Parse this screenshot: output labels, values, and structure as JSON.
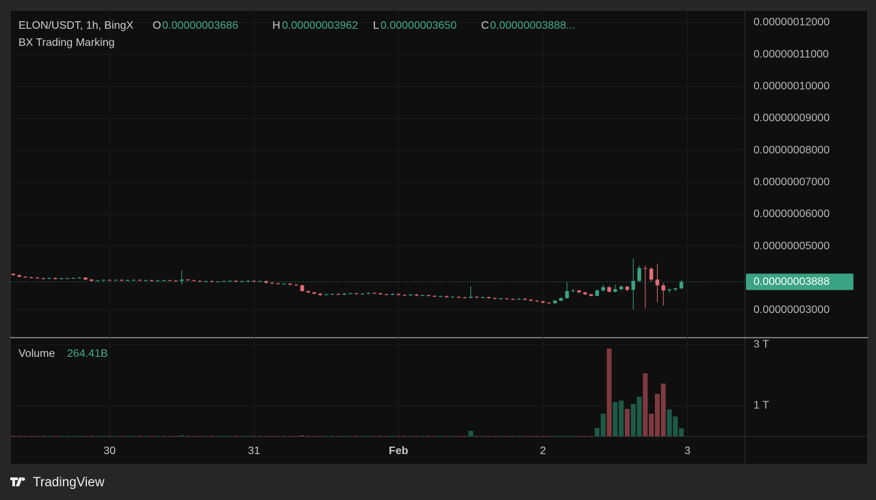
{
  "chart_data": {
    "type": "candlestick",
    "symbol": "ELON/USDT, 1h, BingX",
    "indicator": "BX Trading Marking",
    "ohlc_legend": [
      {
        "key": "O",
        "value_label": "0.00000003686"
      },
      {
        "key": "H",
        "value_label": "0.00000003962"
      },
      {
        "key": "L",
        "value_label": "0.00000003650"
      },
      {
        "key": "C",
        "value_label": "0.00000003888..."
      }
    ],
    "last_price_label": "0.00000003888",
    "candles": [
      [
        4.14e-08,
        4.16e-08,
        4.08e-08,
        4.1e-08
      ],
      [
        4.1e-08,
        4.12e-08,
        4.03e-08,
        4.05e-08
      ],
      [
        4.05e-08,
        4.07e-08,
        4.01e-08,
        4.03e-08
      ],
      [
        4.03e-08,
        4.05e-08,
        4e-08,
        4.02e-08
      ],
      [
        4.02e-08,
        4.04e-08,
        3.98e-08,
        4e-08
      ],
      [
        4e-08,
        4.02e-08,
        3.97e-08,
        3.99e-08
      ],
      [
        3.99e-08,
        4.03e-08,
        3.97e-08,
        4.01e-08
      ],
      [
        4.01e-08,
        4.03e-08,
        3.96e-08,
        3.98e-08
      ],
      [
        3.98e-08,
        4.02e-08,
        3.96e-08,
        4e-08
      ],
      [
        4e-08,
        4.02e-08,
        3.98e-08,
        4e-08
      ],
      [
        4e-08,
        4.03e-08,
        3.98e-08,
        4.01e-08
      ],
      [
        4.01e-08,
        4.04e-08,
        3.99e-08,
        4.02e-08
      ],
      [
        4.02e-08,
        4.04e-08,
        3.94e-08,
        3.96e-08
      ],
      [
        3.96e-08,
        3.98e-08,
        3.9e-08,
        3.92e-08
      ],
      [
        3.92e-08,
        3.95e-08,
        3.9e-08,
        3.93e-08
      ],
      [
        3.93e-08,
        3.97e-08,
        3.91e-08,
        3.95e-08
      ],
      [
        3.95e-08,
        3.97e-08,
        3.92e-08,
        3.94e-08
      ],
      [
        3.94e-08,
        3.97e-08,
        3.92e-08,
        3.95e-08
      ],
      [
        3.95e-08,
        3.97e-08,
        3.91e-08,
        3.93e-08
      ],
      [
        3.93e-08,
        3.96e-08,
        3.91e-08,
        3.94e-08
      ],
      [
        3.94e-08,
        3.97e-08,
        3.92e-08,
        3.95e-08
      ],
      [
        3.95e-08,
        3.97e-08,
        3.91e-08,
        3.93e-08
      ],
      [
        3.93e-08,
        3.96e-08,
        3.91e-08,
        3.94e-08
      ],
      [
        3.94e-08,
        3.96e-08,
        3.9e-08,
        3.92e-08
      ],
      [
        3.92e-08,
        3.95e-08,
        3.9e-08,
        3.93e-08
      ],
      [
        3.93e-08,
        3.96e-08,
        3.91e-08,
        3.94e-08
      ],
      [
        3.94e-08,
        3.96e-08,
        3.91e-08,
        3.93e-08
      ],
      [
        3.93e-08,
        3.95e-08,
        3.9e-08,
        3.92e-08
      ],
      [
        3.92e-08,
        4.25e-08,
        3.8e-08,
        3.96e-08
      ],
      [
        3.96e-08,
        3.98e-08,
        3.92e-08,
        3.94e-08
      ],
      [
        3.94e-08,
        3.96e-08,
        3.9e-08,
        3.92e-08
      ],
      [
        3.92e-08,
        3.94e-08,
        3.88e-08,
        3.9e-08
      ],
      [
        3.9e-08,
        3.93e-08,
        3.88e-08,
        3.91e-08
      ],
      [
        3.91e-08,
        3.93e-08,
        3.87e-08,
        3.89e-08
      ],
      [
        3.89e-08,
        3.92e-08,
        3.87e-08,
        3.9e-08
      ],
      [
        3.9e-08,
        3.93e-08,
        3.88e-08,
        3.91e-08
      ],
      [
        3.91e-08,
        3.94e-08,
        3.89e-08,
        3.92e-08
      ],
      [
        3.92e-08,
        3.94e-08,
        3.88e-08,
        3.9e-08
      ],
      [
        3.9e-08,
        3.93e-08,
        3.88e-08,
        3.91e-08
      ],
      [
        3.91e-08,
        3.94e-08,
        3.89e-08,
        3.92e-08
      ],
      [
        3.92e-08,
        3.94e-08,
        3.88e-08,
        3.9e-08
      ],
      [
        3.9e-08,
        3.93e-08,
        3.88e-08,
        3.91e-08
      ],
      [
        3.91e-08,
        3.93e-08,
        3.84e-08,
        3.86e-08
      ],
      [
        3.86e-08,
        3.88e-08,
        3.82e-08,
        3.84e-08
      ],
      [
        3.84e-08,
        3.86e-08,
        3.8e-08,
        3.82e-08
      ],
      [
        3.82e-08,
        3.85e-08,
        3.8e-08,
        3.83e-08
      ],
      [
        3.83e-08,
        3.85e-08,
        3.78e-08,
        3.8e-08
      ],
      [
        3.8e-08,
        3.82e-08,
        3.76e-08,
        3.78e-08
      ],
      [
        3.78e-08,
        3.8e-08,
        3.58e-08,
        3.6e-08
      ],
      [
        3.6e-08,
        3.62e-08,
        3.54e-08,
        3.56e-08
      ],
      [
        3.56e-08,
        3.58e-08,
        3.5e-08,
        3.52e-08
      ],
      [
        3.52e-08,
        3.54e-08,
        3.44e-08,
        3.48e-08
      ],
      [
        3.48e-08,
        3.52e-08,
        3.46e-08,
        3.5e-08
      ],
      [
        3.5e-08,
        3.53e-08,
        3.48e-08,
        3.51e-08
      ],
      [
        3.51e-08,
        3.53e-08,
        3.47e-08,
        3.49e-08
      ],
      [
        3.49e-08,
        3.54e-08,
        3.47e-08,
        3.52e-08
      ],
      [
        3.52e-08,
        3.55e-08,
        3.5e-08,
        3.53e-08
      ],
      [
        3.53e-08,
        3.55e-08,
        3.49e-08,
        3.51e-08
      ],
      [
        3.51e-08,
        3.54e-08,
        3.49e-08,
        3.52e-08
      ],
      [
        3.52e-08,
        3.56e-08,
        3.5e-08,
        3.54e-08
      ],
      [
        3.54e-08,
        3.56e-08,
        3.51e-08,
        3.53e-08
      ],
      [
        3.53e-08,
        3.55e-08,
        3.48e-08,
        3.5e-08
      ],
      [
        3.5e-08,
        3.52e-08,
        3.47e-08,
        3.49e-08
      ],
      [
        3.49e-08,
        3.53e-08,
        3.47e-08,
        3.51e-08
      ],
      [
        3.51e-08,
        3.53e-08,
        3.46e-08,
        3.48e-08
      ],
      [
        3.48e-08,
        3.5e-08,
        3.45e-08,
        3.47e-08
      ],
      [
        3.47e-08,
        3.51e-08,
        3.45e-08,
        3.49e-08
      ],
      [
        3.49e-08,
        3.51e-08,
        3.44e-08,
        3.46e-08
      ],
      [
        3.46e-08,
        3.49e-08,
        3.44e-08,
        3.47e-08
      ],
      [
        3.47e-08,
        3.49e-08,
        3.43e-08,
        3.45e-08
      ],
      [
        3.45e-08,
        3.47e-08,
        3.41e-08,
        3.43e-08
      ],
      [
        3.43e-08,
        3.46e-08,
        3.41e-08,
        3.44e-08
      ],
      [
        3.44e-08,
        3.46e-08,
        3.39e-08,
        3.41e-08
      ],
      [
        3.41e-08,
        3.44e-08,
        3.39e-08,
        3.42e-08
      ],
      [
        3.42e-08,
        3.44e-08,
        3.38e-08,
        3.4e-08
      ],
      [
        3.4e-08,
        3.42e-08,
        3.37e-08,
        3.39e-08
      ],
      [
        3.39e-08,
        3.75e-08,
        3.37e-08,
        3.42e-08
      ],
      [
        3.42e-08,
        3.44e-08,
        3.38e-08,
        3.4e-08
      ],
      [
        3.4e-08,
        3.43e-08,
        3.38e-08,
        3.41e-08
      ],
      [
        3.41e-08,
        3.43e-08,
        3.36e-08,
        3.38e-08
      ],
      [
        3.38e-08,
        3.4e-08,
        3.34e-08,
        3.36e-08
      ],
      [
        3.36e-08,
        3.39e-08,
        3.34e-08,
        3.37e-08
      ],
      [
        3.37e-08,
        3.39e-08,
        3.33e-08,
        3.35e-08
      ],
      [
        3.35e-08,
        3.37e-08,
        3.32e-08,
        3.34e-08
      ],
      [
        3.34e-08,
        3.38e-08,
        3.32e-08,
        3.36e-08
      ],
      [
        3.36e-08,
        3.38e-08,
        3.31e-08,
        3.33e-08
      ],
      [
        3.33e-08,
        3.35e-08,
        3.28e-08,
        3.3e-08
      ],
      [
        3.3e-08,
        3.32e-08,
        3.26e-08,
        3.28e-08
      ],
      [
        3.28e-08,
        3.3e-08,
        3.22e-08,
        3.24e-08
      ],
      [
        3.24e-08,
        3.26e-08,
        3.2e-08,
        3.22e-08
      ],
      [
        3.22e-08,
        3.32e-08,
        3.2e-08,
        3.3e-08
      ],
      [
        3.3e-08,
        3.4e-08,
        3.28e-08,
        3.38e-08
      ],
      [
        3.38e-08,
        3.88e-08,
        3.36e-08,
        3.6e-08
      ],
      [
        3.6e-08,
        3.66e-08,
        3.56e-08,
        3.62e-08
      ],
      [
        3.62e-08,
        3.64e-08,
        3.54e-08,
        3.56e-08
      ],
      [
        3.56e-08,
        3.58e-08,
        3.48e-08,
        3.5e-08
      ],
      [
        3.5e-08,
        3.52e-08,
        3.43e-08,
        3.45e-08
      ],
      [
        3.45e-08,
        3.66e-08,
        3.43e-08,
        3.62e-08
      ],
      [
        3.62e-08,
        3.8e-08,
        3.58e-08,
        3.72e-08
      ],
      [
        3.72e-08,
        3.76e-08,
        3.55e-08,
        3.58e-08
      ],
      [
        3.58e-08,
        3.8e-08,
        3.55e-08,
        3.66e-08
      ],
      [
        3.66e-08,
        3.78e-08,
        3.62e-08,
        3.74e-08
      ],
      [
        3.74e-08,
        3.76e-08,
        3.6e-08,
        3.64e-08
      ],
      [
        3.64e-08,
        4.61e-08,
        3.02e-08,
        3.92e-08
      ],
      [
        3.92e-08,
        4.4e-08,
        3.88e-08,
        4.32e-08
      ],
      [
        4.32e-08,
        4.4e-08,
        3.05e-08,
        4.3e-08
      ],
      [
        4.3e-08,
        4.35e-08,
        3.9e-08,
        3.96e-08
      ],
      [
        3.96e-08,
        4.45e-08,
        3.25e-08,
        3.78e-08
      ],
      [
        3.78e-08,
        3.85e-08,
        3.15e-08,
        3.62e-08
      ],
      [
        3.62e-08,
        3.68e-08,
        3.55e-08,
        3.65e-08
      ],
      [
        3.65e-08,
        3.7e-08,
        3.6e-08,
        3.686e-08
      ],
      [
        3.686e-08,
        3.962e-08,
        3.65e-08,
        3.888e-08
      ]
    ],
    "volume": [
      10000000000.0,
      10000000000.0,
      10000000000.0,
      10000000000.0,
      10000000000.0,
      10000000000.0,
      10000000000.0,
      10000000000.0,
      10000000000.0,
      10000000000.0,
      10000000000.0,
      10000000000.0,
      10000000000.0,
      10000000000.0,
      10000000000.0,
      10000000000.0,
      10000000000.0,
      10000000000.0,
      10000000000.0,
      10000000000.0,
      10000000000.0,
      10000000000.0,
      10000000000.0,
      10000000000.0,
      10000000000.0,
      10000000000.0,
      10000000000.0,
      10000000000.0,
      30000000000.0,
      10000000000.0,
      10000000000.0,
      10000000000.0,
      10000000000.0,
      10000000000.0,
      10000000000.0,
      10000000000.0,
      10000000000.0,
      10000000000.0,
      10000000000.0,
      10000000000.0,
      10000000000.0,
      10000000000.0,
      10000000000.0,
      10000000000.0,
      10000000000.0,
      10000000000.0,
      10000000000.0,
      10000000000.0,
      30000000000.0,
      10000000000.0,
      10000000000.0,
      10000000000.0,
      10000000000.0,
      10000000000.0,
      10000000000.0,
      10000000000.0,
      10000000000.0,
      10000000000.0,
      10000000000.0,
      10000000000.0,
      10000000000.0,
      10000000000.0,
      10000000000.0,
      10000000000.0,
      10000000000.0,
      10000000000.0,
      10000000000.0,
      10000000000.0,
      10000000000.0,
      10000000000.0,
      10000000000.0,
      10000000000.0,
      10000000000.0,
      10000000000.0,
      10000000000.0,
      10000000000.0,
      180000000000.0,
      10000000000.0,
      10000000000.0,
      10000000000.0,
      10000000000.0,
      10000000000.0,
      10000000000.0,
      10000000000.0,
      10000000000.0,
      10000000000.0,
      10000000000.0,
      10000000000.0,
      10000000000.0,
      10000000000.0,
      10000000000.0,
      10000000000.0,
      10000000000.0,
      10000000000.0,
      10000000000.0,
      10000000000.0,
      10000000000.0,
      270000000000.0,
      740000000000.0,
      2880000000000.0,
      1120000000000.0,
      1170000000000.0,
      900000000000.0,
      1060000000000.0,
      1300000000000.0,
      2070000000000.0,
      740000000000.0,
      1390000000000.0,
      1730000000000.0,
      880000000000.0,
      650000000000.0,
      264410000000
    ],
    "volume_legend": {
      "label": "Volume",
      "value_label": "264.41B"
    },
    "ylim": [
      2.164e-08,
      1.2386e-07
    ],
    "yticks": [
      {
        "value": 3e-08,
        "label": "0.00000003000"
      },
      {
        "value": 5e-08,
        "label": "0.00000005000"
      },
      {
        "value": 6e-08,
        "label": "0.00000006000"
      },
      {
        "value": 7e-08,
        "label": "0.00000007000"
      },
      {
        "value": 8e-08,
        "label": "0.00000008000"
      },
      {
        "value": 9e-08,
        "label": "0.00000009000"
      },
      {
        "value": 1e-07,
        "label": "0.00000010000"
      },
      {
        "value": 1.1e-07,
        "label": "0.00000011000"
      },
      {
        "value": 1.2e-07,
        "label": "0.00000012000"
      }
    ],
    "volume_ylim": [
      0,
      3236000000000
    ],
    "volume_yticks": [
      {
        "value": 1000000000000,
        "label": "1 T"
      },
      {
        "value": 3000000000000,
        "label": "3 T"
      }
    ],
    "xlim": [
      -0.5,
      121.5
    ],
    "xticks": [
      {
        "value": 16,
        "label": "30"
      },
      {
        "value": 40,
        "label": "31"
      },
      {
        "value": 64,
        "label": "Feb"
      },
      {
        "value": 88,
        "label": "2"
      },
      {
        "value": 112,
        "label": "3"
      }
    ],
    "grid": true,
    "up_color": "#3aa383",
    "down_color": "#e56d75",
    "volume_up_color": "#1e5a47",
    "volume_down_color": "#7d3a40"
  },
  "brand": "TradingView"
}
